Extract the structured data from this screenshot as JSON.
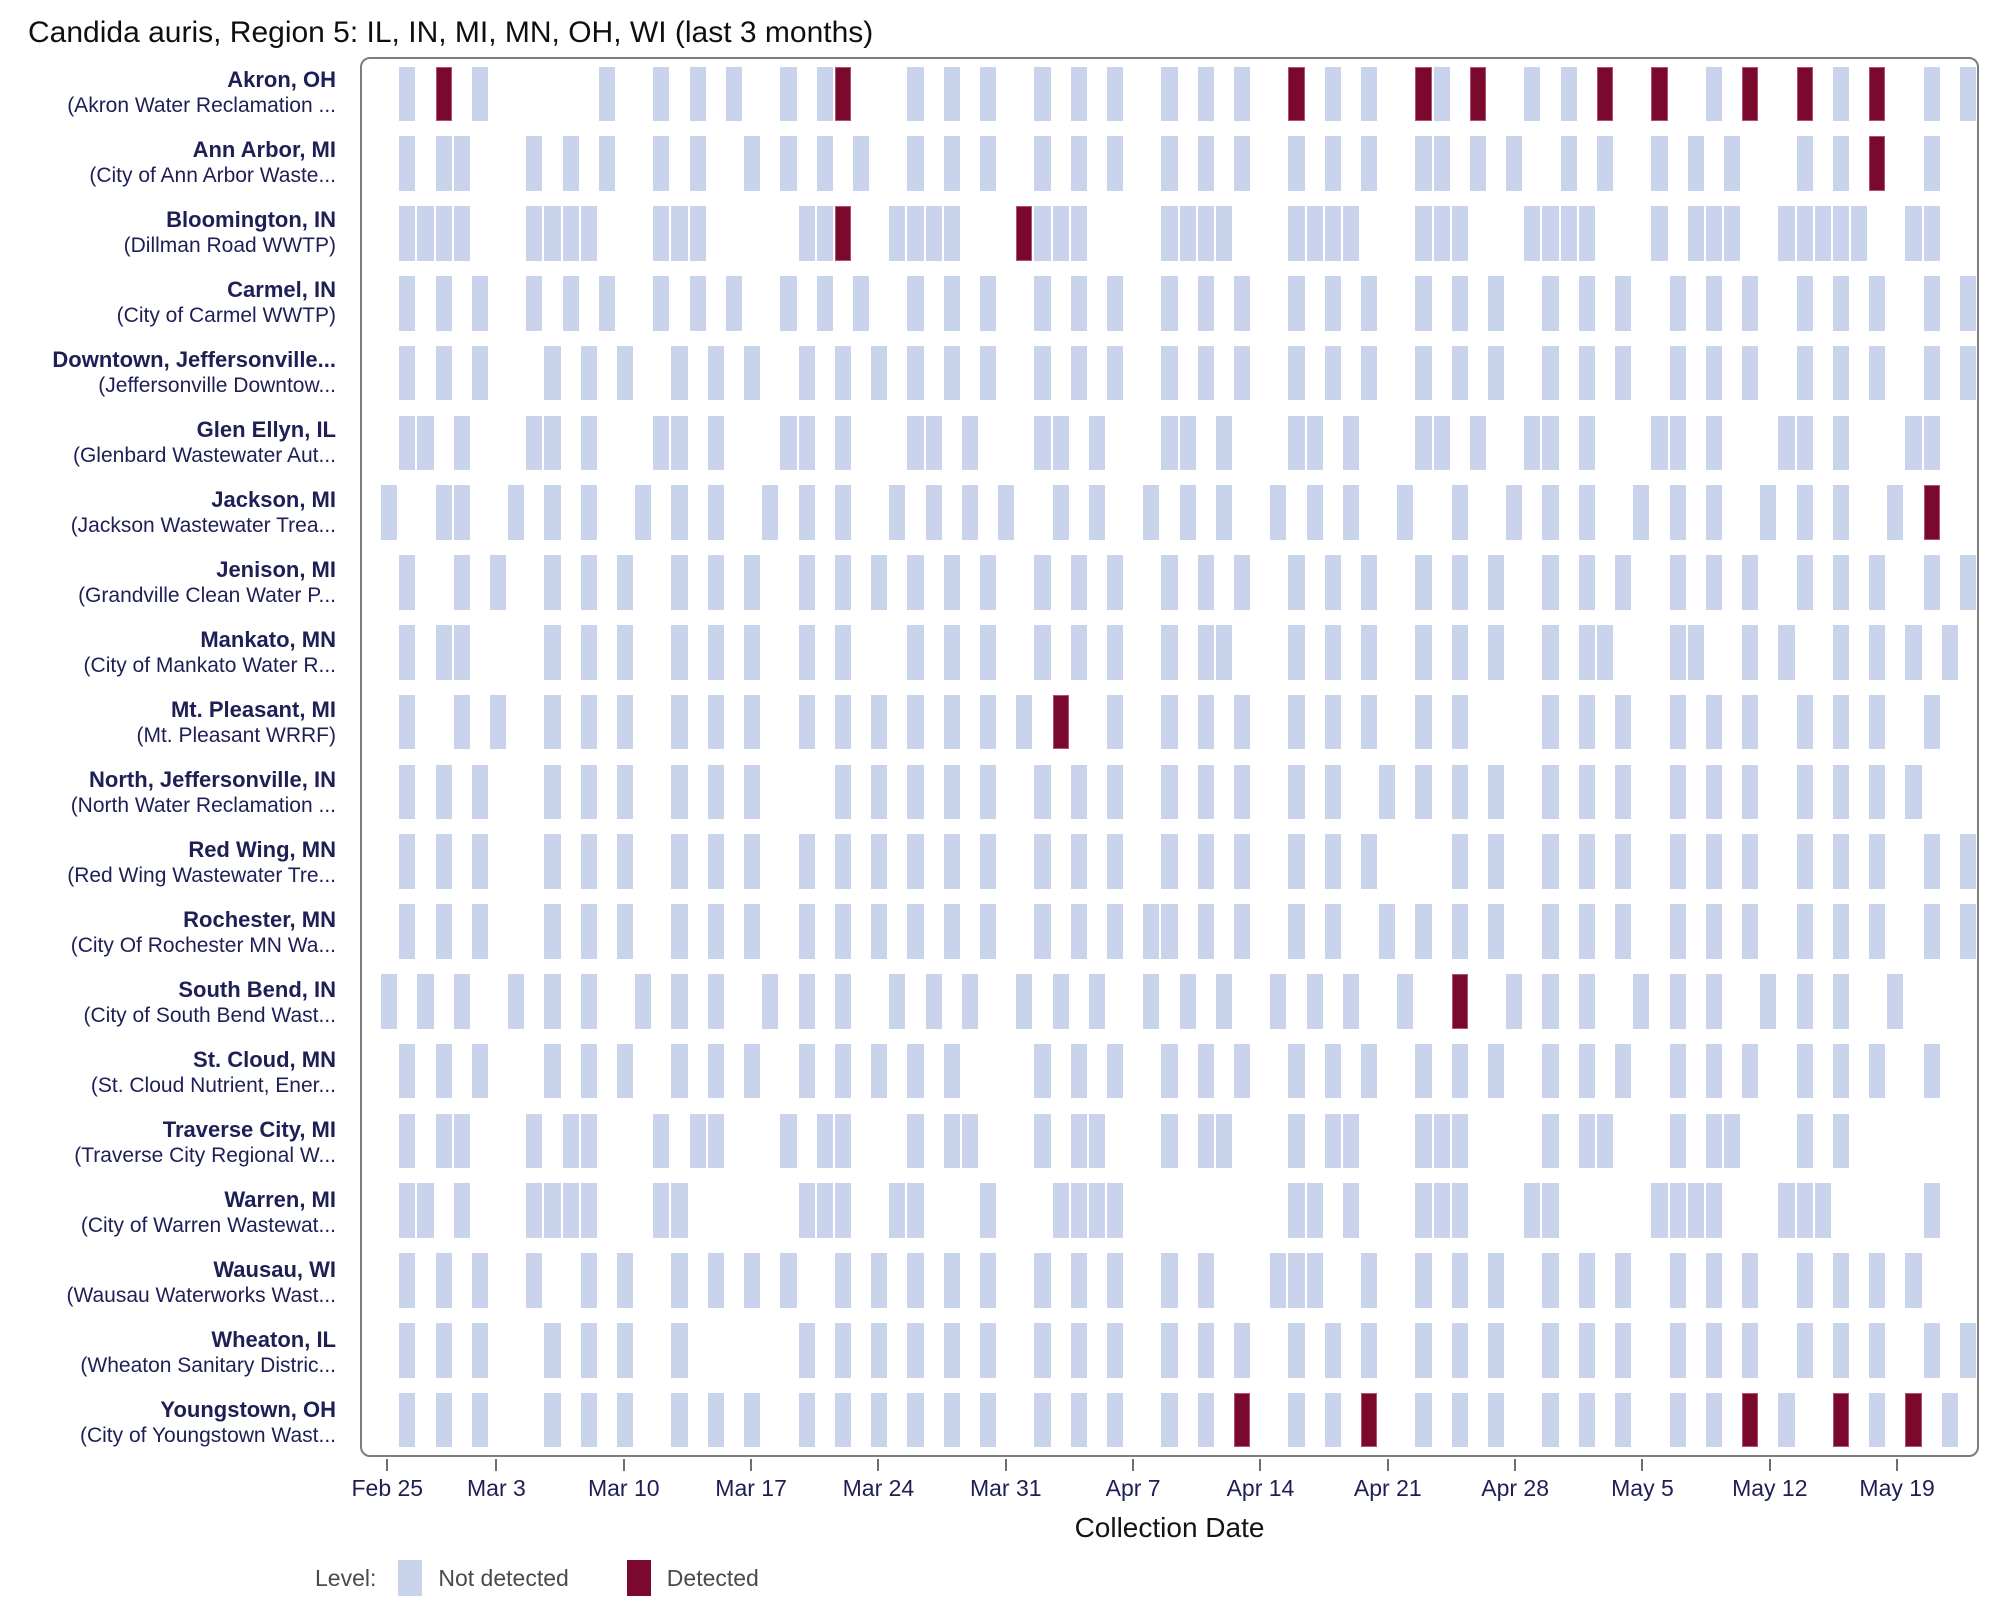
{
  "title": "Candida auris, Region 5: IL, IN, MI, MN, OH, WI (last 3 months)",
  "x_axis": {
    "label": "Collection Date",
    "ticks": [
      "Feb 25",
      "Mar 3",
      "Mar 10",
      "Mar 17",
      "Mar 24",
      "Mar 31",
      "Apr 7",
      "Apr 14",
      "Apr 21",
      "Apr 28",
      "May 5",
      "May 12",
      "May 19"
    ]
  },
  "legend": {
    "label": "Level:",
    "items": [
      {
        "label": "Not detected",
        "status": "not_detected",
        "color": "#c9d3ec"
      },
      {
        "label": "Detected",
        "status": "detected",
        "color": "#7b092d"
      }
    ]
  },
  "colors": {
    "not_detected": "#c9d3ec",
    "detected": "#7b092d",
    "row_label": "#1e1f55",
    "tick_label": "#1e1f55",
    "plot_border": "#7d7d7d",
    "legend_text": "#4a4a4a"
  },
  "chart_data": {
    "type": "heatmap",
    "x_unit": "day",
    "date_domain": {
      "start": "Feb 24",
      "end": "May 23",
      "total_days": 89
    },
    "legend_position": "bottom-left",
    "grid": false,
    "rows": [
      {
        "site": "Akron, OH",
        "facility": "(Akron Water Reclamation ...",
        "not_detected": [
          "Feb 26",
          "Mar 2",
          "Mar 9",
          "Mar 12",
          "Mar 14",
          "Mar 16",
          "Mar 19",
          "Mar 21",
          "Mar 26",
          "Mar 28",
          "Mar 30",
          "Apr 2",
          "Apr 4",
          "Apr 6",
          "Apr 9",
          "Apr 11",
          "Apr 13",
          "Apr 18",
          "Apr 20",
          "Apr 24",
          "Apr 29",
          "May 1",
          "May 9",
          "May 16",
          "May 21",
          "May 23"
        ],
        "detected": [
          "Feb 28",
          "Mar 22",
          "Apr 16",
          "Apr 23",
          "Apr 26",
          "May 3",
          "May 6",
          "May 11",
          "May 14",
          "May 18"
        ]
      },
      {
        "site": "Ann Arbor, MI",
        "facility": "(City of Ann Arbor Waste...",
        "not_detected": [
          "Feb 26",
          "Feb 28",
          "Mar 1",
          "Mar 5",
          "Mar 7",
          "Mar 9",
          "Mar 12",
          "Mar 14",
          "Mar 17",
          "Mar 19",
          "Mar 21",
          "Mar 23",
          "Mar 26",
          "Mar 28",
          "Mar 30",
          "Apr 2",
          "Apr 4",
          "Apr 6",
          "Apr 9",
          "Apr 11",
          "Apr 13",
          "Apr 16",
          "Apr 18",
          "Apr 20",
          "Apr 23",
          "Apr 24",
          "Apr 26",
          "Apr 28",
          "May 1",
          "May 3",
          "May 6",
          "May 8",
          "May 10",
          "May 14",
          "May 16",
          "May 21"
        ],
        "detected": [
          "May 18"
        ]
      },
      {
        "site": "Bloomington, IN",
        "facility": "(Dillman Road WWTP)",
        "not_detected": [
          "Feb 26",
          "Feb 27",
          "Feb 28",
          "Mar 1",
          "Mar 5",
          "Mar 6",
          "Mar 7",
          "Mar 8",
          "Mar 12",
          "Mar 13",
          "Mar 14",
          "Mar 20",
          "Mar 21",
          "Mar 25",
          "Mar 26",
          "Mar 27",
          "Mar 28",
          "Apr 2",
          "Apr 3",
          "Apr 4",
          "Apr 9",
          "Apr 10",
          "Apr 11",
          "Apr 12",
          "Apr 16",
          "Apr 17",
          "Apr 18",
          "Apr 19",
          "Apr 23",
          "Apr 24",
          "Apr 25",
          "Apr 29",
          "Apr 30",
          "May 1",
          "May 2",
          "May 6",
          "May 8",
          "May 9",
          "May 10",
          "May 13",
          "May 14",
          "May 15",
          "May 16",
          "May 17",
          "May 20",
          "May 21"
        ],
        "detected": [
          "Mar 22",
          "Apr 1"
        ]
      },
      {
        "site": "Carmel, IN",
        "facility": "(City of Carmel WWTP)",
        "not_detected": [
          "Feb 26",
          "Feb 28",
          "Mar 2",
          "Mar 5",
          "Mar 7",
          "Mar 9",
          "Mar 12",
          "Mar 14",
          "Mar 16",
          "Mar 19",
          "Mar 21",
          "Mar 23",
          "Mar 26",
          "Mar 28",
          "Mar 30",
          "Apr 2",
          "Apr 4",
          "Apr 6",
          "Apr 9",
          "Apr 11",
          "Apr 13",
          "Apr 16",
          "Apr 18",
          "Apr 20",
          "Apr 23",
          "Apr 25",
          "Apr 27",
          "Apr 30",
          "May 2",
          "May 4",
          "May 7",
          "May 9",
          "May 11",
          "May 14",
          "May 16",
          "May 18",
          "May 21",
          "May 23"
        ],
        "detected": []
      },
      {
        "site": "Downtown, Jeffersonville...",
        "facility": "(Jeffersonville Downtow...",
        "not_detected": [
          "Feb 26",
          "Feb 28",
          "Mar 2",
          "Mar 6",
          "Mar 8",
          "Mar 10",
          "Mar 13",
          "Mar 15",
          "Mar 17",
          "Mar 20",
          "Mar 22",
          "Mar 24",
          "Mar 26",
          "Mar 28",
          "Mar 30",
          "Apr 2",
          "Apr 4",
          "Apr 6",
          "Apr 9",
          "Apr 11",
          "Apr 13",
          "Apr 16",
          "Apr 18",
          "Apr 20",
          "Apr 23",
          "Apr 25",
          "Apr 27",
          "Apr 30",
          "May 2",
          "May 4",
          "May 7",
          "May 9",
          "May 11",
          "May 14",
          "May 16",
          "May 18",
          "May 21",
          "May 23"
        ],
        "detected": []
      },
      {
        "site": "Glen Ellyn, IL",
        "facility": "(Glenbard Wastewater Aut...",
        "not_detected": [
          "Feb 26",
          "Feb 27",
          "Mar 1",
          "Mar 5",
          "Mar 6",
          "Mar 8",
          "Mar 12",
          "Mar 13",
          "Mar 15",
          "Mar 19",
          "Mar 20",
          "Mar 22",
          "Mar 26",
          "Mar 27",
          "Mar 29",
          "Apr 2",
          "Apr 3",
          "Apr 5",
          "Apr 9",
          "Apr 10",
          "Apr 12",
          "Apr 16",
          "Apr 17",
          "Apr 19",
          "Apr 23",
          "Apr 24",
          "Apr 26",
          "Apr 29",
          "Apr 30",
          "May 2",
          "May 6",
          "May 7",
          "May 9",
          "May 13",
          "May 14",
          "May 16",
          "May 20",
          "May 21"
        ],
        "detected": []
      },
      {
        "site": "Jackson, MI",
        "facility": "(Jackson Wastewater Trea...",
        "not_detected": [
          "Feb 25",
          "Feb 28",
          "Mar 1",
          "Mar 4",
          "Mar 6",
          "Mar 8",
          "Mar 11",
          "Mar 13",
          "Mar 15",
          "Mar 18",
          "Mar 20",
          "Mar 22",
          "Mar 25",
          "Mar 27",
          "Mar 29",
          "Mar 31",
          "Apr 3",
          "Apr 5",
          "Apr 8",
          "Apr 10",
          "Apr 12",
          "Apr 15",
          "Apr 17",
          "Apr 19",
          "Apr 22",
          "Apr 25",
          "Apr 28",
          "Apr 30",
          "May 2",
          "May 5",
          "May 7",
          "May 9",
          "May 12",
          "May 14",
          "May 16",
          "May 19"
        ],
        "detected": [
          "May 21"
        ]
      },
      {
        "site": "Jenison, MI",
        "facility": "(Grandville Clean Water P...",
        "not_detected": [
          "Feb 26",
          "Mar 1",
          "Mar 3",
          "Mar 6",
          "Mar 8",
          "Mar 10",
          "Mar 13",
          "Mar 15",
          "Mar 17",
          "Mar 20",
          "Mar 22",
          "Mar 24",
          "Mar 26",
          "Mar 28",
          "Mar 30",
          "Apr 2",
          "Apr 4",
          "Apr 6",
          "Apr 9",
          "Apr 11",
          "Apr 13",
          "Apr 16",
          "Apr 18",
          "Apr 20",
          "Apr 23",
          "Apr 25",
          "Apr 27",
          "Apr 30",
          "May 2",
          "May 4",
          "May 7",
          "May 9",
          "May 11",
          "May 14",
          "May 16",
          "May 18",
          "May 21",
          "May 23"
        ],
        "detected": []
      },
      {
        "site": "Mankato, MN",
        "facility": "(City of Mankato Water R...",
        "not_detected": [
          "Feb 26",
          "Feb 28",
          "Mar 1",
          "Mar 6",
          "Mar 8",
          "Mar 10",
          "Mar 13",
          "Mar 15",
          "Mar 17",
          "Mar 20",
          "Mar 22",
          "Mar 26",
          "Mar 28",
          "Mar 30",
          "Apr 2",
          "Apr 4",
          "Apr 6",
          "Apr 9",
          "Apr 11",
          "Apr 12",
          "Apr 16",
          "Apr 18",
          "Apr 20",
          "Apr 23",
          "Apr 25",
          "Apr 27",
          "Apr 30",
          "May 2",
          "May 3",
          "May 7",
          "May 8",
          "May 11",
          "May 13",
          "May 16",
          "May 18",
          "May 20",
          "May 22"
        ],
        "detected": []
      },
      {
        "site": "Mt. Pleasant, MI",
        "facility": "(Mt. Pleasant WRRF)",
        "not_detected": [
          "Feb 26",
          "Mar 1",
          "Mar 3",
          "Mar 6",
          "Mar 8",
          "Mar 10",
          "Mar 13",
          "Mar 15",
          "Mar 17",
          "Mar 20",
          "Mar 22",
          "Mar 24",
          "Mar 26",
          "Mar 28",
          "Mar 30",
          "Apr 1",
          "Apr 6",
          "Apr 9",
          "Apr 11",
          "Apr 13",
          "Apr 16",
          "Apr 18",
          "Apr 20",
          "Apr 23",
          "Apr 25",
          "Apr 30",
          "May 2",
          "May 4",
          "May 7",
          "May 9",
          "May 11",
          "May 14",
          "May 16",
          "May 18",
          "May 21"
        ],
        "detected": [
          "Apr 3"
        ]
      },
      {
        "site": "North, Jeffersonville, IN",
        "facility": "(North Water Reclamation ...",
        "not_detected": [
          "Feb 26",
          "Feb 28",
          "Mar 2",
          "Mar 6",
          "Mar 8",
          "Mar 10",
          "Mar 13",
          "Mar 15",
          "Mar 17",
          "Mar 22",
          "Mar 24",
          "Mar 26",
          "Mar 28",
          "Mar 30",
          "Apr 2",
          "Apr 4",
          "Apr 6",
          "Apr 9",
          "Apr 11",
          "Apr 13",
          "Apr 16",
          "Apr 18",
          "Apr 21",
          "Apr 23",
          "Apr 25",
          "Apr 27",
          "Apr 30",
          "May 2",
          "May 4",
          "May 7",
          "May 9",
          "May 11",
          "May 14",
          "May 16",
          "May 18",
          "May 20"
        ],
        "detected": []
      },
      {
        "site": "Red Wing, MN",
        "facility": "(Red Wing Wastewater Tre...",
        "not_detected": [
          "Feb 26",
          "Feb 28",
          "Mar 2",
          "Mar 6",
          "Mar 8",
          "Mar 10",
          "Mar 13",
          "Mar 15",
          "Mar 17",
          "Mar 20",
          "Mar 22",
          "Mar 24",
          "Mar 26",
          "Mar 28",
          "Mar 30",
          "Apr 2",
          "Apr 4",
          "Apr 6",
          "Apr 9",
          "Apr 11",
          "Apr 13",
          "Apr 16",
          "Apr 18",
          "Apr 20",
          "Apr 25",
          "Apr 27",
          "Apr 30",
          "May 2",
          "May 4",
          "May 7",
          "May 9",
          "May 11",
          "May 14",
          "May 16",
          "May 18",
          "May 21",
          "May 23"
        ],
        "detected": []
      },
      {
        "site": "Rochester, MN",
        "facility": "(City Of Rochester MN Wa...",
        "not_detected": [
          "Feb 26",
          "Feb 28",
          "Mar 2",
          "Mar 6",
          "Mar 8",
          "Mar 10",
          "Mar 13",
          "Mar 15",
          "Mar 17",
          "Mar 20",
          "Mar 22",
          "Mar 24",
          "Mar 26",
          "Mar 28",
          "Mar 30",
          "Apr 2",
          "Apr 4",
          "Apr 6",
          "Apr 8",
          "Apr 9",
          "Apr 11",
          "Apr 13",
          "Apr 16",
          "Apr 18",
          "Apr 21",
          "Apr 23",
          "Apr 25",
          "Apr 27",
          "Apr 30",
          "May 2",
          "May 4",
          "May 7",
          "May 9",
          "May 11",
          "May 14",
          "May 16",
          "May 18",
          "May 21",
          "May 23"
        ],
        "detected": []
      },
      {
        "site": "South Bend, IN",
        "facility": "(City of South Bend Wast...",
        "not_detected": [
          "Feb 25",
          "Feb 27",
          "Mar 1",
          "Mar 4",
          "Mar 6",
          "Mar 8",
          "Mar 11",
          "Mar 13",
          "Mar 15",
          "Mar 18",
          "Mar 20",
          "Mar 22",
          "Mar 25",
          "Mar 27",
          "Mar 29",
          "Apr 1",
          "Apr 3",
          "Apr 5",
          "Apr 8",
          "Apr 10",
          "Apr 12",
          "Apr 15",
          "Apr 17",
          "Apr 19",
          "Apr 22",
          "Apr 28",
          "Apr 30",
          "May 2",
          "May 5",
          "May 7",
          "May 9",
          "May 12",
          "May 14",
          "May 16",
          "May 19"
        ],
        "detected": [
          "Apr 25"
        ]
      },
      {
        "site": "St. Cloud, MN",
        "facility": "(St. Cloud Nutrient, Ener...",
        "not_detected": [
          "Feb 26",
          "Feb 28",
          "Mar 2",
          "Mar 6",
          "Mar 8",
          "Mar 10",
          "Mar 13",
          "Mar 15",
          "Mar 17",
          "Mar 20",
          "Mar 22",
          "Mar 24",
          "Mar 26",
          "Mar 28",
          "Apr 2",
          "Apr 4",
          "Apr 6",
          "Apr 9",
          "Apr 11",
          "Apr 13",
          "Apr 16",
          "Apr 18",
          "Apr 20",
          "Apr 23",
          "Apr 25",
          "Apr 27",
          "Apr 30",
          "May 2",
          "May 4",
          "May 7",
          "May 9",
          "May 11",
          "May 14",
          "May 16",
          "May 18",
          "May 21"
        ],
        "detected": []
      },
      {
        "site": "Traverse City, MI",
        "facility": "(Traverse City Regional W...",
        "not_detected": [
          "Feb 26",
          "Feb 28",
          "Mar 1",
          "Mar 5",
          "Mar 7",
          "Mar 8",
          "Mar 12",
          "Mar 14",
          "Mar 15",
          "Mar 19",
          "Mar 21",
          "Mar 22",
          "Mar 26",
          "Mar 28",
          "Mar 29",
          "Apr 2",
          "Apr 4",
          "Apr 5",
          "Apr 9",
          "Apr 11",
          "Apr 12",
          "Apr 16",
          "Apr 18",
          "Apr 19",
          "Apr 23",
          "Apr 24",
          "Apr 25",
          "Apr 30",
          "May 2",
          "May 3",
          "May 7",
          "May 9",
          "May 10",
          "May 14",
          "May 16"
        ],
        "detected": []
      },
      {
        "site": "Warren, MI",
        "facility": "(City of Warren Wastewat...",
        "not_detected": [
          "Feb 26",
          "Feb 27",
          "Mar 1",
          "Mar 5",
          "Mar 6",
          "Mar 7",
          "Mar 8",
          "Mar 12",
          "Mar 13",
          "Mar 20",
          "Mar 21",
          "Mar 22",
          "Mar 25",
          "Mar 26",
          "Mar 30",
          "Apr 3",
          "Apr 4",
          "Apr 5",
          "Apr 6",
          "Apr 16",
          "Apr 17",
          "Apr 19",
          "Apr 23",
          "Apr 24",
          "Apr 25",
          "Apr 29",
          "Apr 30",
          "May 6",
          "May 7",
          "May 8",
          "May 9",
          "May 13",
          "May 14",
          "May 15",
          "May 21"
        ],
        "detected": []
      },
      {
        "site": "Wausau, WI",
        "facility": "(Wausau Waterworks Wast...",
        "not_detected": [
          "Feb 26",
          "Feb 28",
          "Mar 2",
          "Mar 5",
          "Mar 8",
          "Mar 10",
          "Mar 13",
          "Mar 15",
          "Mar 17",
          "Mar 19",
          "Mar 22",
          "Mar 24",
          "Mar 26",
          "Mar 28",
          "Mar 30",
          "Apr 2",
          "Apr 4",
          "Apr 6",
          "Apr 9",
          "Apr 11",
          "Apr 15",
          "Apr 16",
          "Apr 17",
          "Apr 20",
          "Apr 23",
          "Apr 25",
          "Apr 27",
          "Apr 30",
          "May 2",
          "May 4",
          "May 7",
          "May 9",
          "May 11",
          "May 14",
          "May 16",
          "May 18",
          "May 20"
        ],
        "detected": []
      },
      {
        "site": "Wheaton, IL",
        "facility": "(Wheaton Sanitary Distric...",
        "not_detected": [
          "Feb 26",
          "Feb 28",
          "Mar 2",
          "Mar 6",
          "Mar 8",
          "Mar 10",
          "Mar 13",
          "Mar 20",
          "Mar 22",
          "Mar 24",
          "Mar 26",
          "Mar 28",
          "Mar 30",
          "Apr 2",
          "Apr 4",
          "Apr 6",
          "Apr 9",
          "Apr 11",
          "Apr 13",
          "Apr 16",
          "Apr 18",
          "Apr 20",
          "Apr 23",
          "Apr 25",
          "Apr 27",
          "Apr 30",
          "May 2",
          "May 4",
          "May 7",
          "May 9",
          "May 11",
          "May 14",
          "May 16",
          "May 18",
          "May 21",
          "May 23"
        ],
        "detected": []
      },
      {
        "site": "Youngstown, OH",
        "facility": "(City of Youngstown Wast...",
        "not_detected": [
          "Feb 26",
          "Feb 28",
          "Mar 2",
          "Mar 6",
          "Mar 8",
          "Mar 10",
          "Mar 13",
          "Mar 15",
          "Mar 17",
          "Mar 20",
          "Mar 22",
          "Mar 24",
          "Mar 26",
          "Mar 28",
          "Mar 30",
          "Apr 2",
          "Apr 4",
          "Apr 6",
          "Apr 9",
          "Apr 11",
          "Apr 16",
          "Apr 18",
          "Apr 23",
          "Apr 25",
          "Apr 27",
          "Apr 30",
          "May 2",
          "May 4",
          "May 7",
          "May 9",
          "May 13",
          "May 18",
          "May 22"
        ],
        "detected": [
          "Apr 13",
          "Apr 20",
          "May 11",
          "May 16",
          "May 20"
        ]
      }
    ]
  }
}
